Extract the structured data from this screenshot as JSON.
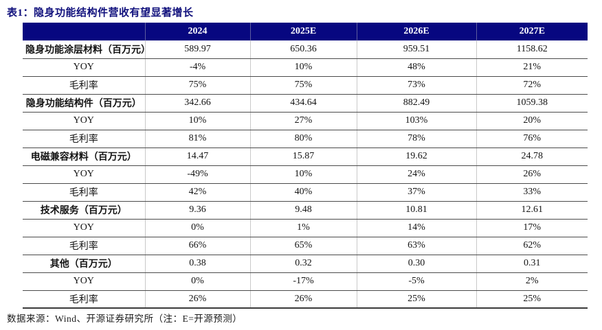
{
  "colors": {
    "header_bg": "#070780",
    "title_text": "#10107c",
    "row_line": "#4a4a4a",
    "column_line": "#c9c9c9"
  },
  "table": {
    "title": "表1：隐身功能结构件营收有望显著增长",
    "columns": [
      "",
      "2024",
      "2025E",
      "2026E",
      "2027E"
    ],
    "rows": [
      {
        "label": "隐身功能涂层材料（百万元）",
        "bold": true,
        "values": [
          "589.97",
          "650.36",
          "959.51",
          "1158.62"
        ]
      },
      {
        "label": "YOY",
        "bold": false,
        "values": [
          "-4%",
          "10%",
          "48%",
          "21%"
        ]
      },
      {
        "label": "毛利率",
        "bold": false,
        "values": [
          "75%",
          "75%",
          "73%",
          "72%"
        ]
      },
      {
        "label": "隐身功能结构件（百万元）",
        "bold": true,
        "values": [
          "342.66",
          "434.64",
          "882.49",
          "1059.38"
        ]
      },
      {
        "label": "YOY",
        "bold": false,
        "values": [
          "10%",
          "27%",
          "103%",
          "20%"
        ]
      },
      {
        "label": "毛利率",
        "bold": false,
        "values": [
          "81%",
          "80%",
          "78%",
          "76%"
        ]
      },
      {
        "label": "电磁兼容材料（百万元）",
        "bold": true,
        "values": [
          "14.47",
          "15.87",
          "19.62",
          "24.78"
        ]
      },
      {
        "label": "YOY",
        "bold": false,
        "values": [
          "-49%",
          "10%",
          "24%",
          "26%"
        ]
      },
      {
        "label": "毛利率",
        "bold": false,
        "values": [
          "42%",
          "40%",
          "37%",
          "33%"
        ]
      },
      {
        "label": "技术服务（百万元）",
        "bold": true,
        "values": [
          "9.36",
          "9.48",
          "10.81",
          "12.61"
        ]
      },
      {
        "label": "YOY",
        "bold": false,
        "values": [
          "0%",
          "1%",
          "14%",
          "17%"
        ]
      },
      {
        "label": "毛利率",
        "bold": false,
        "values": [
          "66%",
          "65%",
          "63%",
          "62%"
        ]
      },
      {
        "label": "其他（百万元）",
        "bold": true,
        "values": [
          "0.38",
          "0.32",
          "0.30",
          "0.31"
        ]
      },
      {
        "label": "YOY",
        "bold": false,
        "values": [
          "0%",
          "-17%",
          "-5%",
          "2%"
        ]
      },
      {
        "label": "毛利率",
        "bold": false,
        "values": [
          "26%",
          "26%",
          "25%",
          "25%"
        ]
      }
    ],
    "source": "数据来源：Wind、开源证券研究所（注：E=开源预测）"
  }
}
